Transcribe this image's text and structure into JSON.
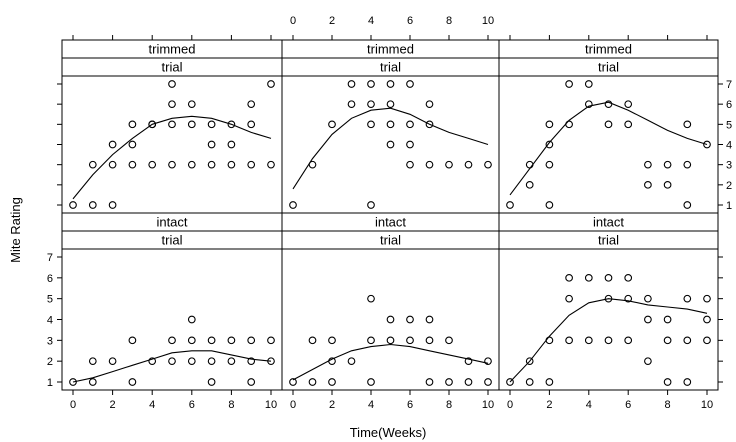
{
  "chart_data": {
    "type": "scatter",
    "xlabel": "Time(Weeks)",
    "ylabel": "Mite Rating",
    "xlim": [
      0,
      10
    ],
    "ylim": [
      1,
      7
    ],
    "x_ticks": [
      "0",
      "2",
      "4",
      "6",
      "8",
      "10"
    ],
    "y_ticks": [
      "1",
      "2",
      "3",
      "4",
      "5",
      "6",
      "7"
    ],
    "top_y_ticks_visible": [
      "7",
      "6",
      "5",
      "4",
      "3",
      "2",
      "1"
    ],
    "layout": "3 columns x 2 rows, smooth curve overlaid",
    "panels": [
      {
        "row": "top",
        "col": 1,
        "strips": [
          "trimmed",
          "trial"
        ],
        "points": [
          [
            0,
            1
          ],
          [
            1,
            1
          ],
          [
            2,
            1
          ],
          [
            1,
            3
          ],
          [
            2,
            3
          ],
          [
            2,
            4
          ],
          [
            3,
            3
          ],
          [
            3,
            4
          ],
          [
            3,
            5
          ],
          [
            4,
            3
          ],
          [
            4,
            5
          ],
          [
            4,
            5
          ],
          [
            5,
            3
          ],
          [
            5,
            5
          ],
          [
            5,
            6
          ],
          [
            5,
            7
          ],
          [
            6,
            3
          ],
          [
            6,
            5
          ],
          [
            6,
            6
          ],
          [
            7,
            3
          ],
          [
            7,
            4
          ],
          [
            7,
            5
          ],
          [
            8,
            3
          ],
          [
            8,
            4
          ],
          [
            8,
            5
          ],
          [
            9,
            3
          ],
          [
            9,
            5
          ],
          [
            9,
            6
          ],
          [
            10,
            3
          ],
          [
            10,
            7
          ]
        ],
        "curve": [
          [
            0,
            1.3
          ],
          [
            1,
            2.5
          ],
          [
            2,
            3.5
          ],
          [
            3,
            4.3
          ],
          [
            4,
            5.0
          ],
          [
            5,
            5.3
          ],
          [
            6,
            5.4
          ],
          [
            7,
            5.3
          ],
          [
            8,
            5.0
          ],
          [
            9,
            4.6
          ],
          [
            10,
            4.3
          ]
        ]
      },
      {
        "row": "top",
        "col": 2,
        "strips": [
          "trimmed",
          "trial"
        ],
        "points": [
          [
            0,
            1
          ],
          [
            1,
            3
          ],
          [
            2,
            5
          ],
          [
            3,
            6
          ],
          [
            3,
            7
          ],
          [
            4,
            1
          ],
          [
            4,
            5
          ],
          [
            4,
            6
          ],
          [
            4,
            7
          ],
          [
            5,
            5
          ],
          [
            5,
            6
          ],
          [
            5,
            7
          ],
          [
            5,
            4
          ],
          [
            6,
            4
          ],
          [
            6,
            5
          ],
          [
            6,
            7
          ],
          [
            6,
            3
          ],
          [
            7,
            5
          ],
          [
            7,
            6
          ],
          [
            7,
            3
          ],
          [
            8,
            3
          ],
          [
            9,
            3
          ],
          [
            10,
            3
          ]
        ],
        "curve": [
          [
            0,
            1.8
          ],
          [
            1,
            3.3
          ],
          [
            2,
            4.5
          ],
          [
            3,
            5.3
          ],
          [
            4,
            5.7
          ],
          [
            5,
            5.8
          ],
          [
            6,
            5.5
          ],
          [
            7,
            5.0
          ],
          [
            8,
            4.6
          ],
          [
            9,
            4.3
          ],
          [
            10,
            4.0
          ]
        ]
      },
      {
        "row": "top",
        "col": 3,
        "strips": [
          "trimmed",
          "trial"
        ],
        "points": [
          [
            0,
            1
          ],
          [
            1,
            2
          ],
          [
            1,
            3
          ],
          [
            2,
            1
          ],
          [
            2,
            3
          ],
          [
            2,
            4
          ],
          [
            2,
            5
          ],
          [
            3,
            5
          ],
          [
            3,
            7
          ],
          [
            4,
            6
          ],
          [
            4,
            7
          ],
          [
            5,
            5
          ],
          [
            5,
            6
          ],
          [
            6,
            5
          ],
          [
            6,
            6
          ],
          [
            7,
            2
          ],
          [
            7,
            3
          ],
          [
            8,
            2
          ],
          [
            8,
            3
          ],
          [
            9,
            1
          ],
          [
            9,
            3
          ],
          [
            9,
            5
          ],
          [
            10,
            4
          ]
        ],
        "curve": [
          [
            0,
            1.5
          ],
          [
            1,
            2.8
          ],
          [
            2,
            4.1
          ],
          [
            3,
            5.2
          ],
          [
            4,
            5.9
          ],
          [
            5,
            6.1
          ],
          [
            6,
            5.7
          ],
          [
            7,
            5.2
          ],
          [
            8,
            4.7
          ],
          [
            9,
            4.3
          ],
          [
            10,
            4.0
          ]
        ]
      },
      {
        "row": "bottom",
        "col": 1,
        "strips": [
          "intact",
          "trial"
        ],
        "points": [
          [
            0,
            1
          ],
          [
            1,
            1
          ],
          [
            1,
            2
          ],
          [
            2,
            2
          ],
          [
            3,
            1
          ],
          [
            3,
            3
          ],
          [
            4,
            2
          ],
          [
            5,
            2
          ],
          [
            5,
            3
          ],
          [
            6,
            2
          ],
          [
            6,
            3
          ],
          [
            6,
            4
          ],
          [
            7,
            1
          ],
          [
            7,
            2
          ],
          [
            7,
            3
          ],
          [
            8,
            2
          ],
          [
            8,
            3
          ],
          [
            9,
            1
          ],
          [
            9,
            2
          ],
          [
            9,
            3
          ],
          [
            10,
            2
          ],
          [
            10,
            3
          ]
        ],
        "curve": [
          [
            0,
            1.0
          ],
          [
            1,
            1.2
          ],
          [
            2,
            1.5
          ],
          [
            3,
            1.8
          ],
          [
            4,
            2.1
          ],
          [
            5,
            2.4
          ],
          [
            6,
            2.5
          ],
          [
            7,
            2.5
          ],
          [
            8,
            2.3
          ],
          [
            9,
            2.1
          ],
          [
            10,
            2.0
          ]
        ]
      },
      {
        "row": "bottom",
        "col": 2,
        "strips": [
          "intact",
          "trial"
        ],
        "points": [
          [
            0,
            1
          ],
          [
            1,
            1
          ],
          [
            1,
            3
          ],
          [
            2,
            1
          ],
          [
            2,
            2
          ],
          [
            2,
            3
          ],
          [
            3,
            2
          ],
          [
            4,
            1
          ],
          [
            4,
            3
          ],
          [
            4,
            5
          ],
          [
            5,
            4
          ],
          [
            5,
            3
          ],
          [
            6,
            3
          ],
          [
            6,
            4
          ],
          [
            7,
            1
          ],
          [
            7,
            3
          ],
          [
            7,
            4
          ],
          [
            8,
            1
          ],
          [
            8,
            3
          ],
          [
            9,
            1
          ],
          [
            9,
            2
          ],
          [
            10,
            1
          ],
          [
            10,
            2
          ]
        ],
        "curve": [
          [
            0,
            1.1
          ],
          [
            1,
            1.6
          ],
          [
            2,
            2.1
          ],
          [
            3,
            2.5
          ],
          [
            4,
            2.7
          ],
          [
            5,
            2.8
          ],
          [
            6,
            2.7
          ],
          [
            7,
            2.5
          ],
          [
            8,
            2.3
          ],
          [
            9,
            2.1
          ],
          [
            10,
            1.9
          ]
        ]
      },
      {
        "row": "bottom",
        "col": 3,
        "strips": [
          "intact",
          "trial"
        ],
        "points": [
          [
            0,
            1
          ],
          [
            1,
            1
          ],
          [
            1,
            2
          ],
          [
            2,
            1
          ],
          [
            2,
            3
          ],
          [
            3,
            3
          ],
          [
            3,
            5
          ],
          [
            3,
            6
          ],
          [
            4,
            3
          ],
          [
            4,
            6
          ],
          [
            5,
            3
          ],
          [
            5,
            5
          ],
          [
            5,
            6
          ],
          [
            6,
            3
          ],
          [
            6,
            5
          ],
          [
            6,
            6
          ],
          [
            7,
            2
          ],
          [
            7,
            4
          ],
          [
            7,
            5
          ],
          [
            8,
            1
          ],
          [
            8,
            3
          ],
          [
            8,
            4
          ],
          [
            9,
            1
          ],
          [
            9,
            3
          ],
          [
            9,
            5
          ],
          [
            10,
            3
          ],
          [
            10,
            4
          ],
          [
            10,
            5
          ]
        ],
        "curve": [
          [
            0,
            1.0
          ],
          [
            1,
            2.0
          ],
          [
            2,
            3.2
          ],
          [
            3,
            4.2
          ],
          [
            4,
            4.8
          ],
          [
            5,
            5.0
          ],
          [
            6,
            4.9
          ],
          [
            7,
            4.7
          ],
          [
            8,
            4.6
          ],
          [
            9,
            4.5
          ],
          [
            10,
            4.3
          ]
        ]
      }
    ]
  }
}
